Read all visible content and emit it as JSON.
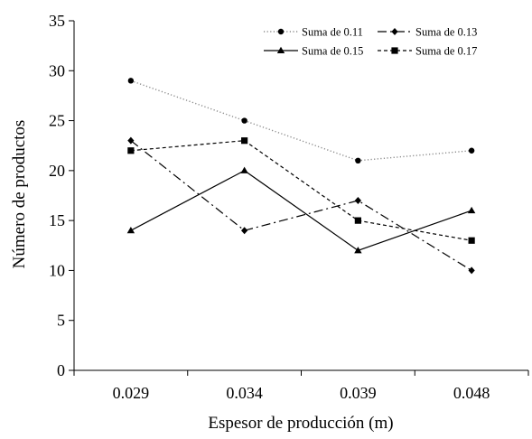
{
  "chart_data": {
    "type": "line",
    "categories": [
      "0.029",
      "0.034",
      "0.039",
      "0.048"
    ],
    "xlabel": "Espesor de producción (m)",
    "ylabel": "Número de productos",
    "ylim": [
      0,
      35
    ],
    "yticks": [
      0,
      5,
      10,
      15,
      20,
      25,
      30,
      35
    ],
    "grid": false,
    "legend_position": "top-right",
    "series": [
      {
        "name": "Suma de 0.11",
        "values": [
          29,
          25,
          21,
          22
        ],
        "marker": "circle",
        "dash": "dotted",
        "color": "#000000"
      },
      {
        "name": "Suma de 0.13",
        "values": [
          23,
          14,
          17,
          10
        ],
        "marker": "diamond",
        "dash": "dashdot",
        "color": "#000000"
      },
      {
        "name": "Suma de 0.15",
        "values": [
          14,
          20,
          12,
          16
        ],
        "marker": "triangle",
        "dash": "solid",
        "color": "#000000"
      },
      {
        "name": "Suma de 0.17",
        "values": [
          22,
          23,
          15,
          13
        ],
        "marker": "square",
        "dash": "dashed",
        "color": "#000000"
      }
    ]
  }
}
